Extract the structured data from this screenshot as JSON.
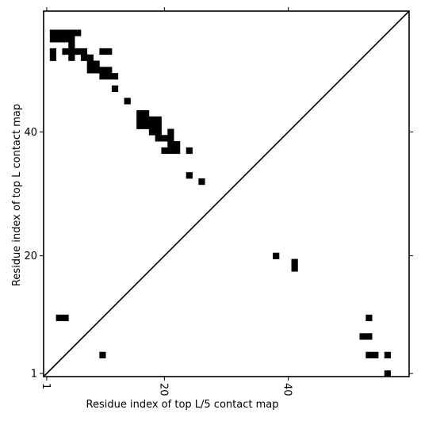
{
  "chart_data": {
    "type": "heatmap",
    "title": "",
    "xlabel": "Residue index of top L/5 contact map",
    "ylabel": "Residue index of top L contact map",
    "xlim": [
      0.5,
      59.5
    ],
    "ylim": [
      0.5,
      59.5
    ],
    "xticks": [
      {
        "value": 1,
        "label": "1"
      },
      {
        "value": 20,
        "label": "20"
      },
      {
        "value": 40,
        "label": "40"
      }
    ],
    "yticks": [
      {
        "value": 1,
        "label": "1"
      },
      {
        "value": 20,
        "label": "20"
      },
      {
        "value": 40,
        "label": "40"
      }
    ],
    "diagonal": true,
    "cell_color": "#000000",
    "background_color": "#ffffff",
    "upper_contacts": [
      [
        2,
        56
      ],
      [
        3,
        56
      ],
      [
        4,
        56
      ],
      [
        5,
        56
      ],
      [
        6,
        56
      ],
      [
        2,
        55
      ],
      [
        3,
        55
      ],
      [
        4,
        55
      ],
      [
        5,
        55
      ],
      [
        5,
        54
      ],
      [
        2,
        53
      ],
      [
        4,
        53
      ],
      [
        5,
        53
      ],
      [
        6,
        53
      ],
      [
        7,
        53
      ],
      [
        10,
        53
      ],
      [
        11,
        53
      ],
      [
        2,
        52
      ],
      [
        5,
        52
      ],
      [
        7,
        52
      ],
      [
        8,
        52
      ],
      [
        8,
        51
      ],
      [
        9,
        51
      ],
      [
        8,
        50
      ],
      [
        9,
        50
      ],
      [
        10,
        50
      ],
      [
        11,
        50
      ],
      [
        10,
        49
      ],
      [
        11,
        49
      ],
      [
        12,
        49
      ],
      [
        12,
        47
      ],
      [
        14,
        45
      ],
      [
        16,
        43
      ],
      [
        17,
        43
      ],
      [
        16,
        42
      ],
      [
        17,
        42
      ],
      [
        18,
        42
      ],
      [
        19,
        42
      ],
      [
        16,
        41
      ],
      [
        17,
        41
      ],
      [
        18,
        41
      ],
      [
        19,
        41
      ],
      [
        18,
        40
      ],
      [
        19,
        40
      ],
      [
        21,
        40
      ],
      [
        19,
        39
      ],
      [
        20,
        39
      ],
      [
        21,
        39
      ],
      [
        21,
        38
      ],
      [
        22,
        38
      ],
      [
        20,
        37
      ],
      [
        21,
        37
      ],
      [
        22,
        37
      ],
      [
        24,
        37
      ],
      [
        24,
        33
      ],
      [
        26,
        32
      ]
    ],
    "lower_contacts": [
      [
        38,
        20
      ],
      [
        41,
        19
      ],
      [
        41,
        18
      ],
      [
        3,
        10
      ],
      [
        4,
        10
      ],
      [
        53,
        10
      ],
      [
        52,
        7
      ],
      [
        53,
        7
      ],
      [
        10,
        4
      ],
      [
        53,
        4
      ],
      [
        54,
        4
      ],
      [
        56,
        4
      ],
      [
        56,
        1
      ]
    ]
  }
}
